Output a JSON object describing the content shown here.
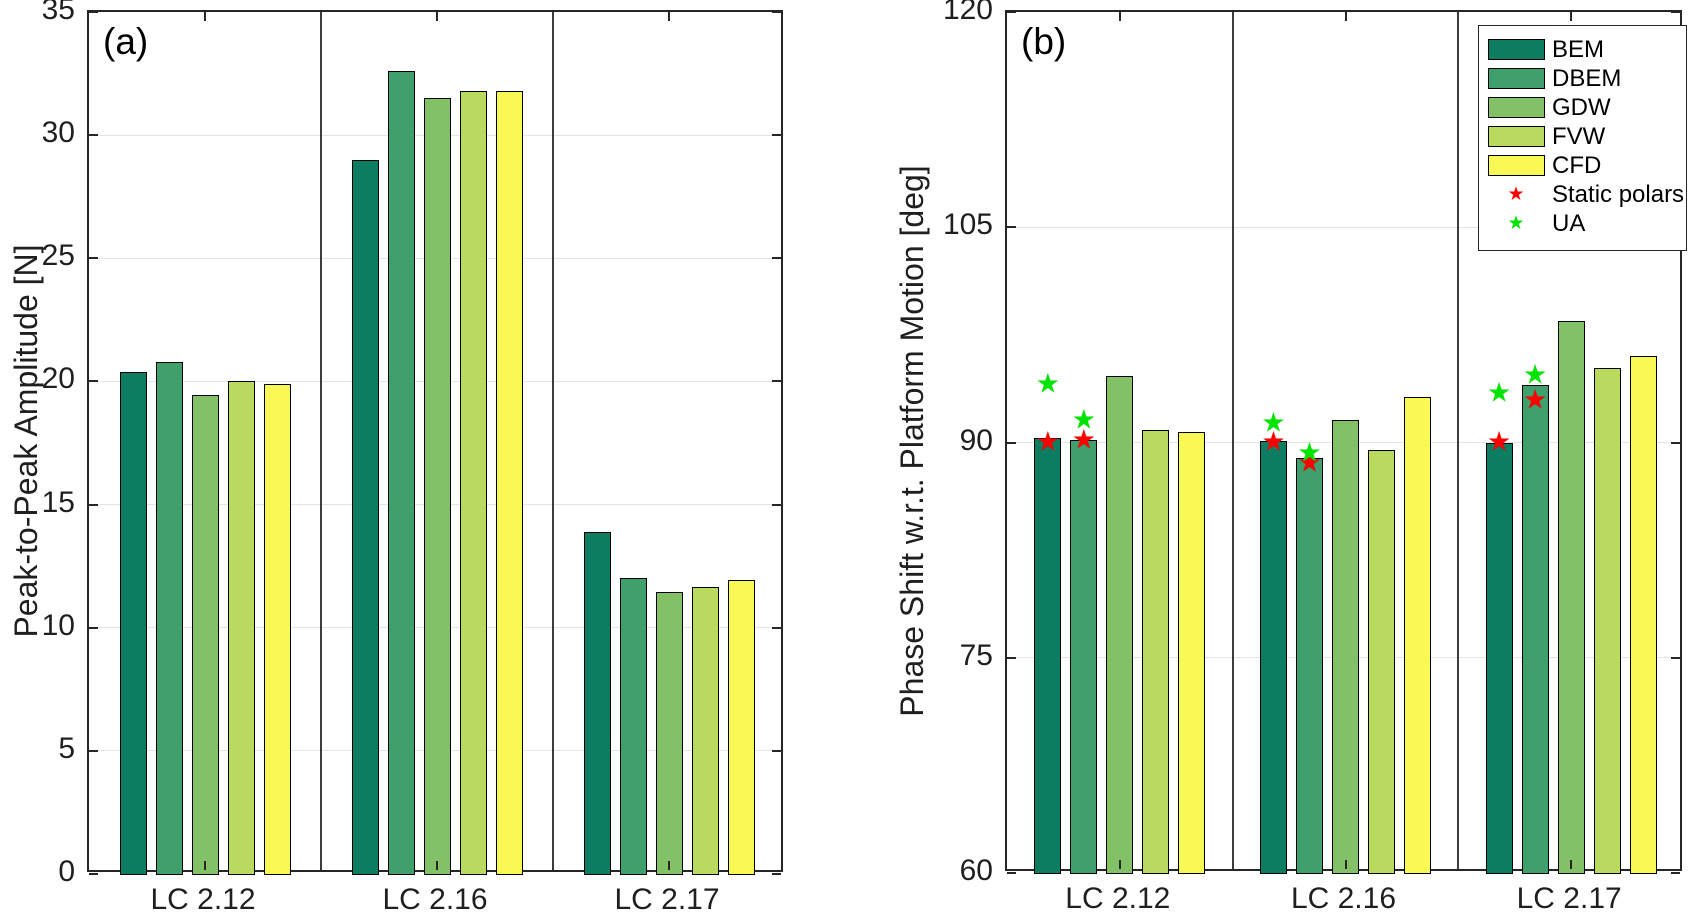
{
  "figure": {
    "background": "#ffffff",
    "axis_color": "#262626",
    "grid_color": "#e4e4e4",
    "divider_color": "#3c3c3c",
    "tick_label_color": "#1f1f1f"
  },
  "chart_data": [
    {
      "id": "a",
      "type": "bar",
      "panel_label": "(a)",
      "ylabel": "Peak-to-Peak Amplitude [N]",
      "xlabel": "",
      "categories": [
        "LC 2.12",
        "LC 2.16",
        "LC 2.17"
      ],
      "ylim": [
        0,
        35
      ],
      "yticks": [
        "0",
        "5",
        "10",
        "15",
        "20",
        "25",
        "30",
        "35"
      ],
      "grid": "horizontal",
      "series": [
        {
          "name": "BEM",
          "color": "#0d7d62",
          "values": [
            20.4,
            29.0,
            13.9
          ]
        },
        {
          "name": "DBEM",
          "color": "#3fa06d",
          "values": [
            20.8,
            32.6,
            12.0
          ]
        },
        {
          "name": "GDW",
          "color": "#82c165",
          "values": [
            19.45,
            31.5,
            11.45
          ]
        },
        {
          "name": "FVW",
          "color": "#b9d95f",
          "values": [
            20.0,
            31.8,
            11.65
          ]
        },
        {
          "name": "CFD",
          "color": "#f9f955",
          "values": [
            19.9,
            31.8,
            11.95
          ]
        }
      ]
    },
    {
      "id": "b",
      "type": "bar",
      "panel_label": "(b)",
      "ylabel": "Phase Shift w.r.t. Platform Motion [deg]",
      "xlabel": "",
      "categories": [
        "LC 2.12",
        "LC 2.16",
        "LC 2.17"
      ],
      "ylim": [
        60,
        120
      ],
      "yticks": [
        "60",
        "75",
        "90",
        "105",
        "120"
      ],
      "grid": "horizontal",
      "series": [
        {
          "name": "BEM",
          "color": "#0d7d62",
          "values": [
            90.3,
            90.1,
            90.0
          ]
        },
        {
          "name": "DBEM",
          "color": "#3fa06d",
          "values": [
            90.2,
            88.9,
            94.0
          ]
        },
        {
          "name": "GDW",
          "color": "#82c165",
          "values": [
            94.6,
            91.6,
            98.5
          ]
        },
        {
          "name": "FVW",
          "color": "#b9d95f",
          "values": [
            90.9,
            89.5,
            95.2
          ]
        },
        {
          "name": "CFD",
          "color": "#f9f955",
          "values": [
            90.7,
            93.2,
            96.0
          ]
        }
      ],
      "markers": [
        {
          "name": "Static polars",
          "color": "#ff0000",
          "glyph": "★",
          "points": [
            {
              "category": "LC 2.12",
              "series": "BEM",
              "value": 90.0
            },
            {
              "category": "LC 2.12",
              "series": "DBEM",
              "value": 90.1
            },
            {
              "category": "LC 2.16",
              "series": "BEM",
              "value": 90.0
            },
            {
              "category": "LC 2.16",
              "series": "DBEM",
              "value": 88.5
            },
            {
              "category": "LC 2.17",
              "series": "BEM",
              "value": 90.0
            },
            {
              "category": "LC 2.17",
              "series": "DBEM",
              "value": 92.9
            }
          ]
        },
        {
          "name": "UA",
          "color": "#00e400",
          "glyph": "★",
          "points": [
            {
              "category": "LC 2.12",
              "series": "BEM",
              "value": 94.0
            },
            {
              "category": "LC 2.12",
              "series": "DBEM",
              "value": 91.5
            },
            {
              "category": "LC 2.16",
              "series": "BEM",
              "value": 91.3
            },
            {
              "category": "LC 2.16",
              "series": "DBEM",
              "value": 89.2
            },
            {
              "category": "LC 2.17",
              "series": "BEM",
              "value": 93.4
            },
            {
              "category": "LC 2.17",
              "series": "DBEM",
              "value": 94.6
            }
          ]
        }
      ],
      "legend": {
        "position": "top-right",
        "entries": [
          "BEM",
          "DBEM",
          "GDW",
          "FVW",
          "CFD",
          "Static polars",
          "UA"
        ]
      }
    }
  ]
}
